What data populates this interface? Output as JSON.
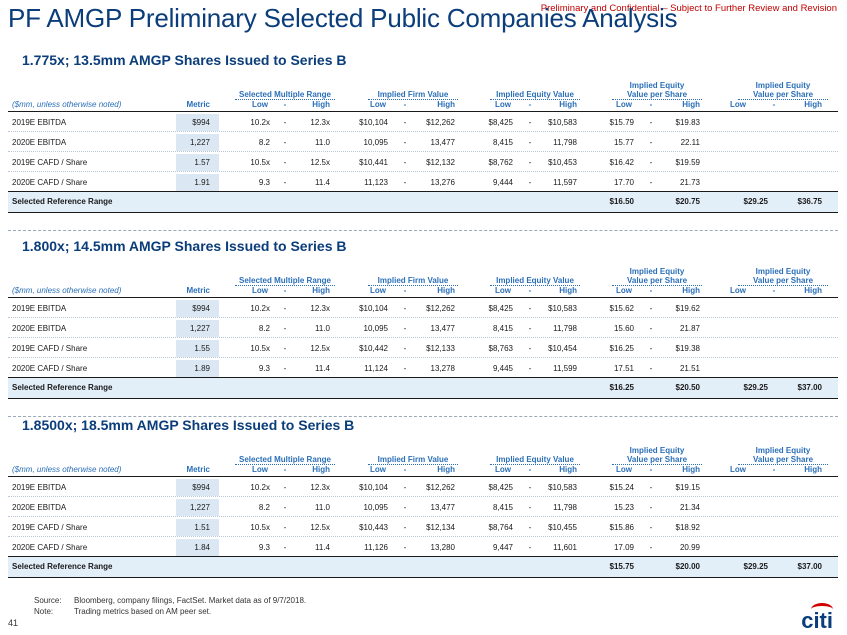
{
  "header": {
    "title": "PF AMGP Preliminary Selected Public Companies Analysis",
    "confidential": "Preliminary and Confidential – Subject to Further Review and Revision"
  },
  "table_headers": {
    "units": "($mm, unless otherwise noted)",
    "metric": "Metric",
    "low": "Low",
    "dash": "-",
    "high": "High",
    "multiple_range": "Selected Multiple Range",
    "firm_value": "Implied Firm Value",
    "equity_value": "Implied Equity Value",
    "equity_per_share_l1": "Implied Equity",
    "equity_per_share_l2": "Value per Share"
  },
  "sections": [
    {
      "title": "1.775x; 13.5mm AMGP Shares Issued to Series B",
      "rows": [
        {
          "metric": "2019E EBITDA",
          "value": "$994",
          "mlow": "10.2x",
          "mhigh": "12.3x",
          "flow": "$10,104",
          "fhigh": "$12,262",
          "elow": "$8,425",
          "ehigh": "$10,583",
          "plow": "$15.79",
          "phigh": "$19.83"
        },
        {
          "metric": "2020E EBITDA",
          "value": "1,227",
          "mlow": "8.2",
          "mhigh": "11.0",
          "flow": "10,095",
          "fhigh": "13,477",
          "elow": "8,415",
          "ehigh": "11,798",
          "plow": "15.77",
          "phigh": "22.11"
        },
        {
          "metric": "2019E CAFD / Share",
          "value": "1.57",
          "mlow": "10.5x",
          "mhigh": "12.5x",
          "flow": "$10,441",
          "fhigh": "$12,132",
          "elow": "$8,762",
          "ehigh": "$10,453",
          "plow": "$16.42",
          "phigh": "$19.59"
        },
        {
          "metric": "2020E CAFD / Share",
          "value": "1.91",
          "mlow": "9.3",
          "mhigh": "11.4",
          "flow": "11,123",
          "fhigh": "13,276",
          "elow": "9,444",
          "ehigh": "11,597",
          "plow": "17.70",
          "phigh": "21.73"
        }
      ],
      "ref": {
        "label": "Selected Reference Range",
        "low": "$16.50",
        "high": "$20.75",
        "low2": "$29.25",
        "high2": "$36.75"
      }
    },
    {
      "title": "1.800x; 14.5mm AMGP Shares Issued to Series B",
      "rows": [
        {
          "metric": "2019E EBITDA",
          "value": "$994",
          "mlow": "10.2x",
          "mhigh": "12.3x",
          "flow": "$10,104",
          "fhigh": "$12,262",
          "elow": "$8,425",
          "ehigh": "$10,583",
          "plow": "$15.62",
          "phigh": "$19.62"
        },
        {
          "metric": "2020E EBITDA",
          "value": "1,227",
          "mlow": "8.2",
          "mhigh": "11.0",
          "flow": "10,095",
          "fhigh": "13,477",
          "elow": "8,415",
          "ehigh": "11,798",
          "plow": "15.60",
          "phigh": "21.87"
        },
        {
          "metric": "2019E CAFD / Share",
          "value": "1.55",
          "mlow": "10.5x",
          "mhigh": "12.5x",
          "flow": "$10,442",
          "fhigh": "$12,133",
          "elow": "$8,763",
          "ehigh": "$10,454",
          "plow": "$16.25",
          "phigh": "$19.38"
        },
        {
          "metric": "2020E CAFD / Share",
          "value": "1.89",
          "mlow": "9.3",
          "mhigh": "11.4",
          "flow": "11,124",
          "fhigh": "13,278",
          "elow": "9,445",
          "ehigh": "11,599",
          "plow": "17.51",
          "phigh": "21.51"
        }
      ],
      "ref": {
        "label": "Selected Reference Range",
        "low": "$16.25",
        "high": "$20.50",
        "low2": "$29.25",
        "high2": "$37.00"
      }
    },
    {
      "title": "1.8500x; 18.5mm AMGP Shares Issued to Series B",
      "rows": [
        {
          "metric": "2019E EBITDA",
          "value": "$994",
          "mlow": "10.2x",
          "mhigh": "12.3x",
          "flow": "$10,104",
          "fhigh": "$12,262",
          "elow": "$8,425",
          "ehigh": "$10,583",
          "plow": "$15.24",
          "phigh": "$19.15"
        },
        {
          "metric": "2020E EBITDA",
          "value": "1,227",
          "mlow": "8.2",
          "mhigh": "11.0",
          "flow": "10,095",
          "fhigh": "13,477",
          "elow": "8,415",
          "ehigh": "11,798",
          "plow": "15.23",
          "phigh": "21.34"
        },
        {
          "metric": "2019E CAFD / Share",
          "value": "1.51",
          "mlow": "10.5x",
          "mhigh": "12.5x",
          "flow": "$10,443",
          "fhigh": "$12,134",
          "elow": "$8,764",
          "ehigh": "$10,455",
          "plow": "$15.86",
          "phigh": "$18.92"
        },
        {
          "metric": "2020E CAFD / Share",
          "value": "1.84",
          "mlow": "9.3",
          "mhigh": "11.4",
          "flow": "11,126",
          "fhigh": "13,280",
          "elow": "9,447",
          "ehigh": "11,601",
          "plow": "17.09",
          "phigh": "20.99"
        }
      ],
      "ref": {
        "label": "Selected Reference Range",
        "low": "$15.75",
        "high": "$20.00",
        "low2": "$29.25",
        "high2": "$37.00"
      }
    }
  ],
  "footer": {
    "source_label": "Source:",
    "source_text": "Bloomberg, company filings, FactSet. Market data as of 9/7/2018.",
    "note_label": "Note:",
    "note_text": "Trading metrics based on AM peer set.",
    "page_number": "41",
    "logo": "citi"
  }
}
